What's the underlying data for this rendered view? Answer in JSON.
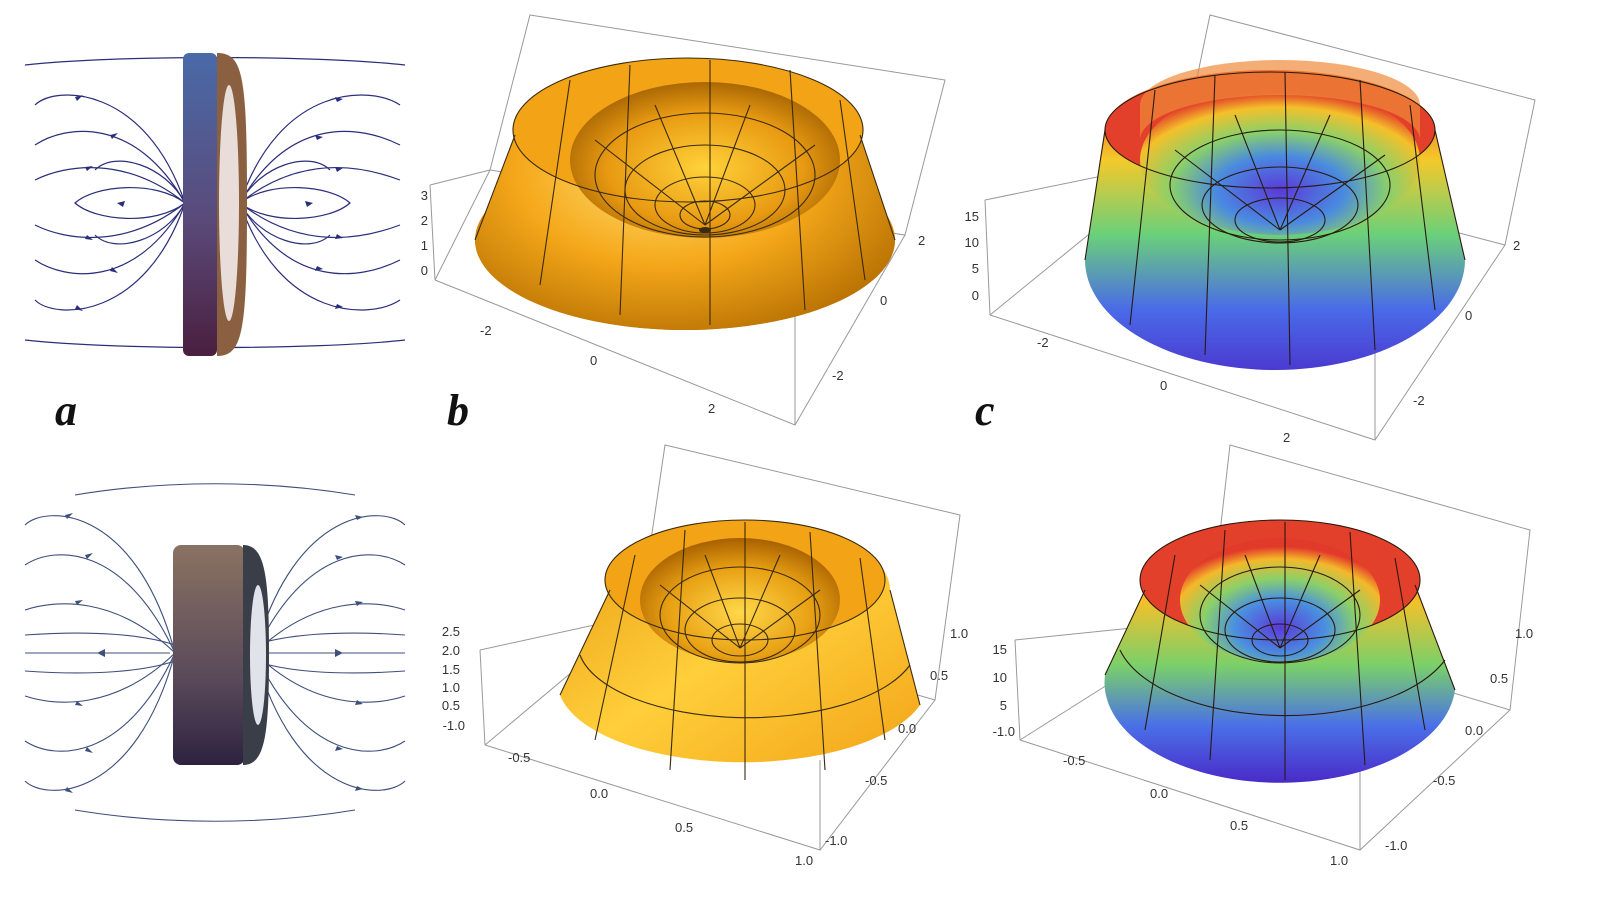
{
  "panel_labels": {
    "a": "a",
    "b": "b",
    "c": "c"
  },
  "colors": {
    "field_lines_top": "#2b2f7a",
    "field_lines_bottom": "#3d4f7a",
    "gold_light": "#ffd23a",
    "gold_dark": "#b06a00",
    "rainbow_top": "#e8382a",
    "rainbow_bottom": "#4a3ad0"
  },
  "plots": {
    "top_b": {
      "z_ticks": [
        "0",
        "1",
        "2",
        "3"
      ],
      "x_ticks": [
        "-2",
        "0",
        "2"
      ],
      "y_ticks": [
        "2",
        "0",
        "-2"
      ]
    },
    "top_c": {
      "z_ticks": [
        "0",
        "5",
        "10",
        "15"
      ],
      "x_ticks": [
        "-2",
        "0",
        "2"
      ],
      "y_ticks": [
        "2",
        "0",
        "-2"
      ]
    },
    "bottom_b": {
      "z_ticks": [
        "0.5",
        "1.0",
        "1.5",
        "2.0",
        "2.5"
      ],
      "x_ticks": [
        "-1.0",
        "-0.5",
        "0.0",
        "0.5",
        "1.0"
      ],
      "y_ticks": [
        "1.0",
        "0.5",
        "0.0",
        "-0.5",
        "-1.0"
      ]
    },
    "bottom_c": {
      "z_ticks": [
        "5",
        "10",
        "15"
      ],
      "x_ticks": [
        "-1.0",
        "-0.5",
        "0.0",
        "0.5",
        "1.0"
      ],
      "y_ticks": [
        "1.0",
        "0.5",
        "0.0",
        "-0.5",
        "-1.0"
      ]
    }
  }
}
